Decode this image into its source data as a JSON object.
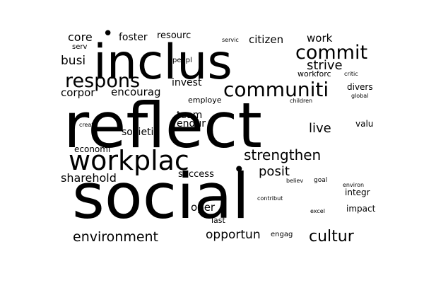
{
  "cloud": {
    "background": "#ffffff",
    "text_color": "#000000",
    "dots": [
      "•",
      "•"
    ],
    "words": [
      "reflect",
      "social",
      "inclus",
      "workplac",
      "respons",
      "communiti",
      "commit",
      "strengthen",
      "environment",
      "cultur",
      "opportun",
      "posit",
      "strive",
      "live",
      "busi",
      "core",
      "sharehold",
      "foster",
      "work",
      "citizen",
      "encourag",
      "corpor",
      "societi",
      "invest",
      "endur",
      "team",
      "divers",
      "oper",
      "success",
      "economi",
      "resourc",
      "valu",
      "impact",
      "integr",
      "workforc",
      "employe",
      "peopl",
      "last",
      "serv",
      "servic",
      "critic",
      "global",
      "children",
      "creat",
      "environ",
      "goal",
      "believ",
      "contribut",
      "excel",
      "engag"
    ]
  }
}
